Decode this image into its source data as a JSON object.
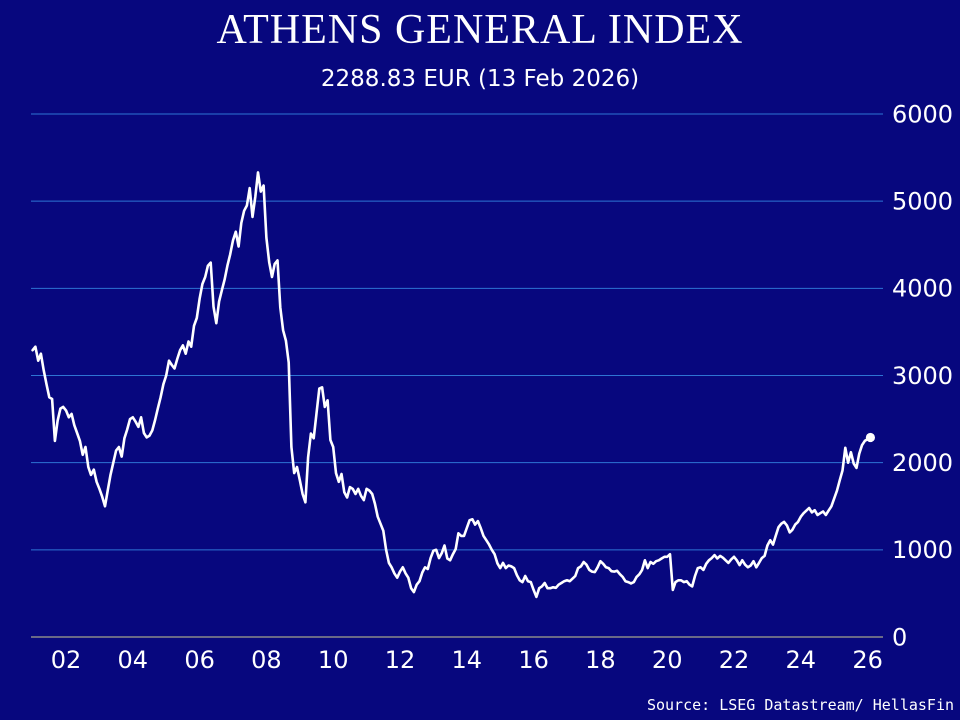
{
  "header": {
    "title": "ATHENS GENERAL INDEX",
    "subtitle": "2288.83 EUR (13 Feb 2026)"
  },
  "footer": {
    "source": "Source: LSEG Datastream/ HellasFin"
  },
  "colors": {
    "background": "#07077E",
    "gridline": "#2E74D4",
    "zero_line": "#8A8A8A",
    "line": "#FFFFFF",
    "text": "#FFFFFF"
  },
  "chart_data": {
    "type": "line",
    "title": "ATHENS GENERAL INDEX",
    "subtitle": "2288.83 EUR (13 Feb 2026)",
    "latest": {
      "value": 2288.83,
      "currency": "EUR",
      "date": "13 Feb 2026"
    },
    "grid": true,
    "legend_position": "none",
    "ylim": [
      0,
      6000
    ],
    "xlim": [
      2001.0,
      2026.4
    ],
    "y_ticks": [
      6000,
      5000,
      4000,
      3000,
      2000,
      1000,
      0
    ],
    "x_ticks": [
      {
        "year": 2002,
        "label": "02"
      },
      {
        "year": 2004,
        "label": "04"
      },
      {
        "year": 2006,
        "label": "06"
      },
      {
        "year": 2008,
        "label": "08"
      },
      {
        "year": 2010,
        "label": "10"
      },
      {
        "year": 2012,
        "label": "12"
      },
      {
        "year": 2014,
        "label": "14"
      },
      {
        "year": 2016,
        "label": "16"
      },
      {
        "year": 2018,
        "label": "18"
      },
      {
        "year": 2020,
        "label": "20"
      },
      {
        "year": 2022,
        "label": "22"
      },
      {
        "year": 2024,
        "label": "24"
      },
      {
        "year": 2026,
        "label": "26"
      }
    ],
    "series": [
      {
        "name": "Athens General Index (EUR)",
        "start_year": 2001.0,
        "interval_years": 0.0833333,
        "last_point_marker": true,
        "values": [
          3290,
          3330,
          3170,
          3250,
          3060,
          2900,
          2750,
          2730,
          2250,
          2480,
          2620,
          2640,
          2600,
          2520,
          2560,
          2430,
          2340,
          2250,
          2090,
          2180,
          1950,
          1860,
          1920,
          1780,
          1700,
          1610,
          1500,
          1680,
          1860,
          2000,
          2140,
          2180,
          2070,
          2280,
          2380,
          2500,
          2520,
          2470,
          2410,
          2520,
          2340,
          2290,
          2310,
          2370,
          2490,
          2620,
          2750,
          2900,
          3000,
          3170,
          3120,
          3080,
          3190,
          3290,
          3345,
          3250,
          3390,
          3330,
          3570,
          3660,
          3880,
          4050,
          4130,
          4260,
          4295,
          3790,
          3600,
          3850,
          3980,
          4100,
          4260,
          4390,
          4550,
          4650,
          4480,
          4750,
          4890,
          4950,
          5150,
          4820,
          5050,
          5330,
          5110,
          5180,
          4580,
          4300,
          4130,
          4280,
          4320,
          3780,
          3520,
          3400,
          3150,
          2180,
          1880,
          1950,
          1800,
          1640,
          1545,
          2060,
          2335,
          2280,
          2565,
          2850,
          2865,
          2640,
          2715,
          2260,
          2180,
          1880,
          1780,
          1870,
          1660,
          1600,
          1720,
          1700,
          1640,
          1700,
          1620,
          1570,
          1700,
          1680,
          1640,
          1530,
          1380,
          1300,
          1220,
          1000,
          850,
          800,
          730,
          680,
          750,
          800,
          730,
          680,
          560,
          515,
          600,
          640,
          740,
          800,
          780,
          905,
          990,
          1000,
          905,
          960,
          1050,
          900,
          880,
          950,
          1010,
          1190,
          1160,
          1160,
          1250,
          1340,
          1350,
          1290,
          1330,
          1250,
          1160,
          1110,
          1060,
          1000,
          950,
          845,
          790,
          850,
          790,
          820,
          810,
          790,
          710,
          650,
          630,
          700,
          640,
          630,
          540,
          460,
          560,
          580,
          620,
          560,
          560,
          570,
          565,
          600,
          620,
          640,
          650,
          640,
          670,
          700,
          790,
          810,
          860,
          830,
          770,
          750,
          745,
          800,
          870,
          840,
          800,
          790,
          755,
          750,
          760,
          720,
          690,
          640,
          630,
          615,
          630,
          690,
          720,
          770,
          880,
          790,
          860,
          840,
          870,
          880,
          900,
          920,
          920,
          950,
          540,
          630,
          650,
          650,
          630,
          640,
          600,
          580,
          700,
          790,
          800,
          770,
          840,
          880,
          905,
          940,
          900,
          930,
          910,
          880,
          850,
          890,
          920,
          880,
          825,
          880,
          830,
          800,
          820,
          870,
          800,
          850,
          905,
          930,
          1050,
          1110,
          1060,
          1160,
          1260,
          1300,
          1320,
          1280,
          1200,
          1230,
          1290,
          1320,
          1380,
          1420,
          1450,
          1480,
          1430,
          1455,
          1400,
          1420,
          1440,
          1400,
          1450,
          1500,
          1590,
          1680,
          1800,
          1910,
          2170,
          2000,
          2120,
          1990,
          1940,
          2100,
          2200,
          2250,
          2270,
          2288.83
        ]
      }
    ]
  }
}
